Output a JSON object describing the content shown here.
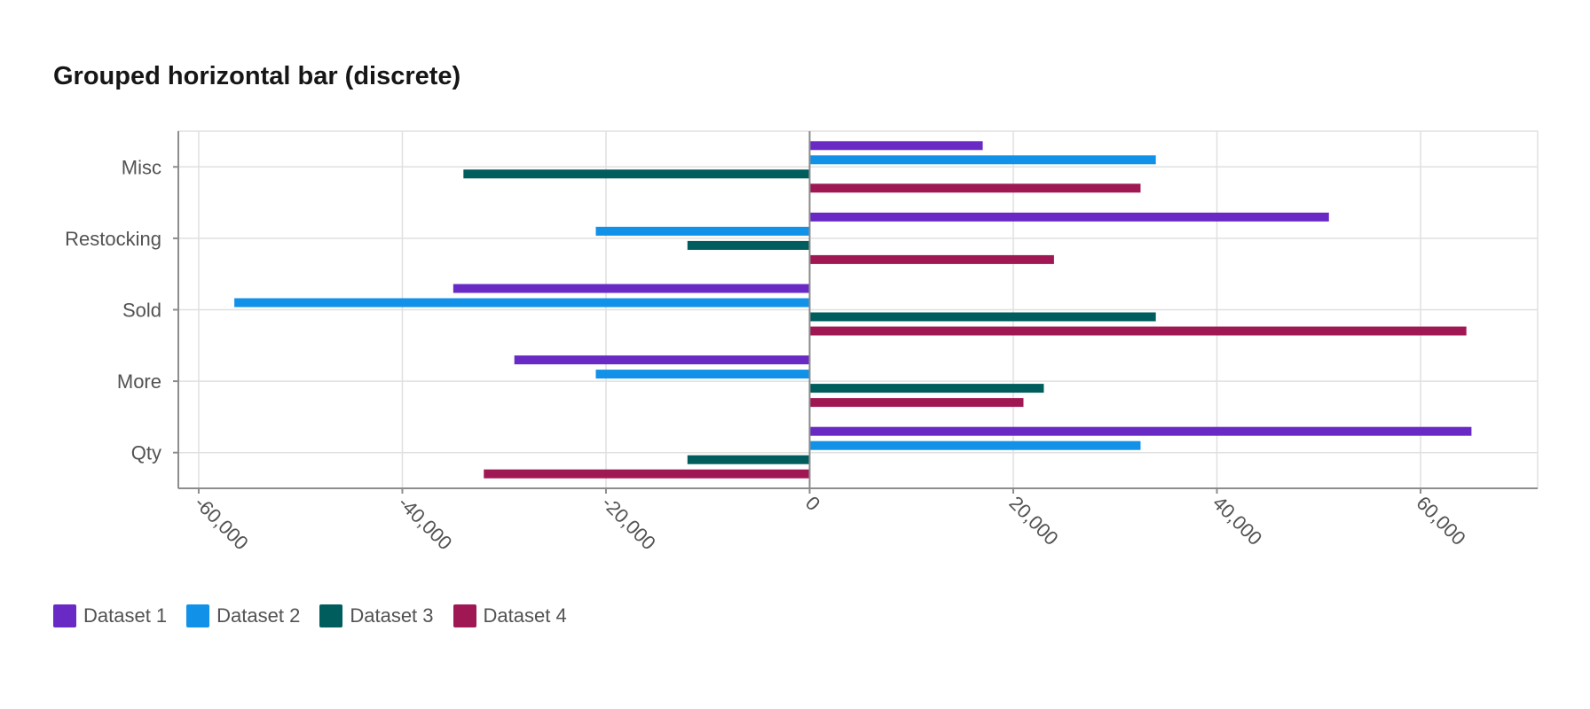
{
  "chart_data": {
    "type": "bar",
    "orientation": "horizontal",
    "grouped": true,
    "title": "Grouped horizontal bar (discrete)",
    "categories": [
      "Misc",
      "Restocking",
      "Sold",
      "More",
      "Qty"
    ],
    "series": [
      {
        "name": "Dataset 1",
        "color": "#6929c4",
        "values": [
          17000,
          51000,
          -35000,
          -29000,
          65000
        ]
      },
      {
        "name": "Dataset 2",
        "color": "#1192e8",
        "values": [
          34000,
          -21000,
          -56500,
          -21000,
          32500
        ]
      },
      {
        "name": "Dataset 3",
        "color": "#005d5d",
        "values": [
          -34000,
          -12000,
          34000,
          23000,
          -12000
        ]
      },
      {
        "name": "Dataset 4",
        "color": "#9f1853",
        "values": [
          32500,
          24000,
          64500,
          21000,
          -32000
        ]
      }
    ],
    "xlim": [
      -62000,
      71500
    ],
    "x_ticks": [
      -60000,
      -40000,
      -20000,
      0,
      20000,
      40000,
      60000
    ],
    "x_tick_labels": [
      "-60,000",
      "-40,000",
      "-20,000",
      "0",
      "20,000",
      "40,000",
      "60,000"
    ],
    "grid": true,
    "legend_position": "bottom-left"
  }
}
